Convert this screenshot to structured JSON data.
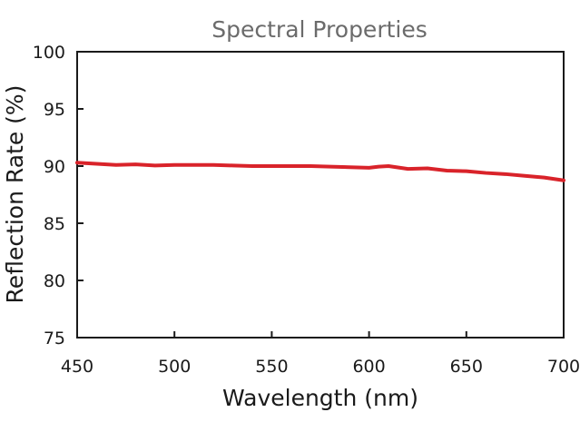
{
  "chart_data": {
    "type": "line",
    "title": "Spectral Properties",
    "xlabel": "Wavelength (nm)",
    "ylabel": "Reflection Rate (%)",
    "xlim": [
      450,
      700
    ],
    "ylim": [
      75,
      100
    ],
    "xticks": [
      450,
      500,
      550,
      600,
      650,
      700
    ],
    "yticks": [
      75,
      80,
      85,
      90,
      95,
      100
    ],
    "xtick_labels": [
      "450",
      "500",
      "550",
      "600",
      "650",
      "700"
    ],
    "ytick_labels": [
      "75",
      "80",
      "85",
      "90",
      "95",
      "100"
    ],
    "grid": false,
    "series": [
      {
        "color": "#d9232a",
        "x": [
          450,
          460,
          470,
          480,
          490,
          500,
          510,
          520,
          530,
          540,
          550,
          560,
          570,
          580,
          590,
          600,
          605,
          610,
          620,
          630,
          640,
          650,
          660,
          670,
          680,
          690,
          700
        ],
        "y": [
          90.3,
          90.2,
          90.1,
          90.15,
          90.05,
          90.1,
          90.1,
          90.1,
          90.05,
          90.0,
          90.0,
          90.0,
          90.0,
          89.95,
          89.9,
          89.85,
          89.95,
          90.0,
          89.75,
          89.8,
          89.6,
          89.55,
          89.4,
          89.3,
          89.15,
          89.0,
          88.75
        ]
      }
    ]
  }
}
